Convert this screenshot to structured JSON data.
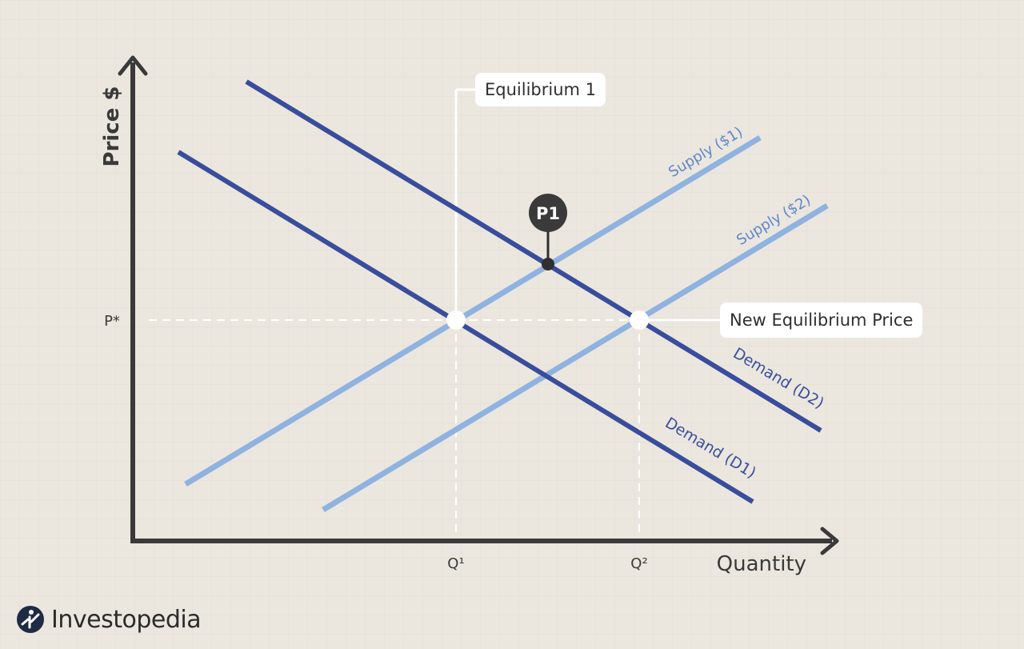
{
  "axes": {
    "y_label": "Price $",
    "x_label": "Quantity",
    "p_star": "P*",
    "q1": "Q¹",
    "q2": "Q²"
  },
  "curves": {
    "supply1": "Supply ($1)",
    "supply2": "Supply ($2)",
    "demand1": "Demand (D1)",
    "demand2": "Demand (D2)"
  },
  "callouts": {
    "equilibrium1": "Equilibrium 1",
    "new_equilibrium_price": "New Equilibrium Price",
    "p1": "P1"
  },
  "brand": {
    "name": "Investopedia"
  },
  "colors": {
    "background": "#ebe7df",
    "axis": "#3a3a3a",
    "demand": "#3a4d9c",
    "supply": "#8fb2e0",
    "guide": "#ffffff",
    "marker": "#2f2f2f"
  }
}
